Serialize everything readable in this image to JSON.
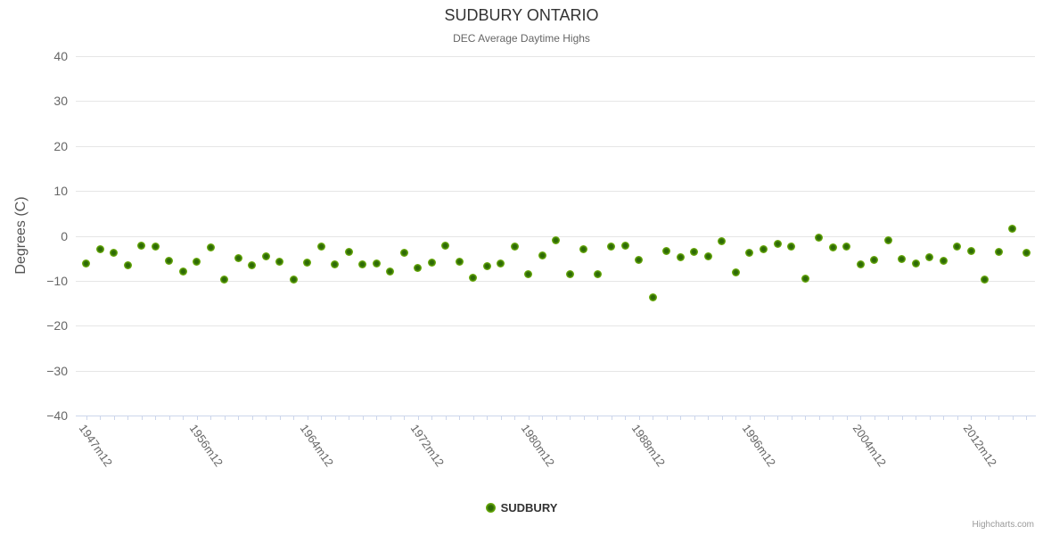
{
  "header": {
    "title": "SUDBURY ONTARIO",
    "subtitle": "DEC Average Daytime Highs"
  },
  "legend": {
    "label": "SUDBURY",
    "color": "#72b30e"
  },
  "credits": {
    "label": "Highcharts.com"
  },
  "colors": {
    "marker_outer": "#8ec43c",
    "marker_mid": "#72b30e",
    "marker_center": "#2d6a06",
    "gridline": "#e6e6e6",
    "axis": "#ccd6eb",
    "title_text": "#333333",
    "muted_text": "#666666"
  },
  "chart_data": {
    "type": "scatter",
    "title": "SUDBURY ONTARIO",
    "subtitle": "DEC Average Daytime Highs",
    "xlabel": "",
    "ylabel": "Degrees (C)",
    "ylim": [
      -40,
      40
    ],
    "y_ticks": [
      40,
      30,
      20,
      10,
      0,
      -10,
      -20,
      -30,
      -40
    ],
    "grid": true,
    "legend_position": "bottom-center",
    "x_label_suffix": "m12",
    "x_axis_labels": [
      "1947m12",
      "1956m12",
      "1964m12",
      "1972m12",
      "1980m12",
      "1988m12",
      "1996m12",
      "2004m12",
      "2012m12"
    ],
    "x_axis_label_slots": [
      0,
      8,
      16,
      24,
      32,
      40,
      48,
      56,
      64
    ],
    "series": [
      {
        "name": "SUDBURY",
        "x": [
          1947,
          1949,
          1950,
          1951,
          1952,
          1953,
          1954,
          1955,
          1956,
          1957,
          1958,
          1959,
          1960,
          1961,
          1962,
          1963,
          1964,
          1965,
          1966,
          1967,
          1968,
          1969,
          1970,
          1971,
          1972,
          1973,
          1974,
          1975,
          1976,
          1977,
          1978,
          1979,
          1980,
          1981,
          1982,
          1983,
          1984,
          1985,
          1986,
          1987,
          1988,
          1989,
          1990,
          1991,
          1992,
          1993,
          1994,
          1995,
          1996,
          1997,
          1998,
          1999,
          2000,
          2001,
          2002,
          2003,
          2004,
          2005,
          2006,
          2007,
          2008,
          2009,
          2010,
          2011,
          2012,
          2013,
          2014,
          2015,
          2016
        ],
        "values": [
          -6.2,
          -3.0,
          -3.8,
          -6.5,
          -2.2,
          -2.4,
          -5.5,
          -7.9,
          -5.8,
          -2.6,
          -9.7,
          -5.0,
          -6.6,
          -4.6,
          -5.7,
          -9.7,
          -6.0,
          -2.4,
          -6.3,
          -3.6,
          -6.4,
          -6.2,
          -8.0,
          -3.8,
          -7.1,
          -5.9,
          -2.2,
          -5.8,
          -9.4,
          -6.7,
          -6.2,
          -2.4,
          -8.6,
          -4.3,
          -0.9,
          -8.6,
          -2.9,
          -8.5,
          -2.4,
          -2.2,
          -5.3,
          -13.6,
          -3.3,
          -4.8,
          -3.5,
          -4.6,
          -1.2,
          -8.1,
          -3.8,
          -3.0,
          -1.8,
          -2.4,
          -9.6,
          -0.4,
          -2.6,
          -2.3,
          -6.3,
          -5.3,
          -0.9,
          -5.1,
          -6.1,
          -4.7,
          -5.5,
          -2.3,
          -3.4,
          -9.7,
          -3.6,
          1.6,
          -3.7
        ]
      }
    ]
  }
}
